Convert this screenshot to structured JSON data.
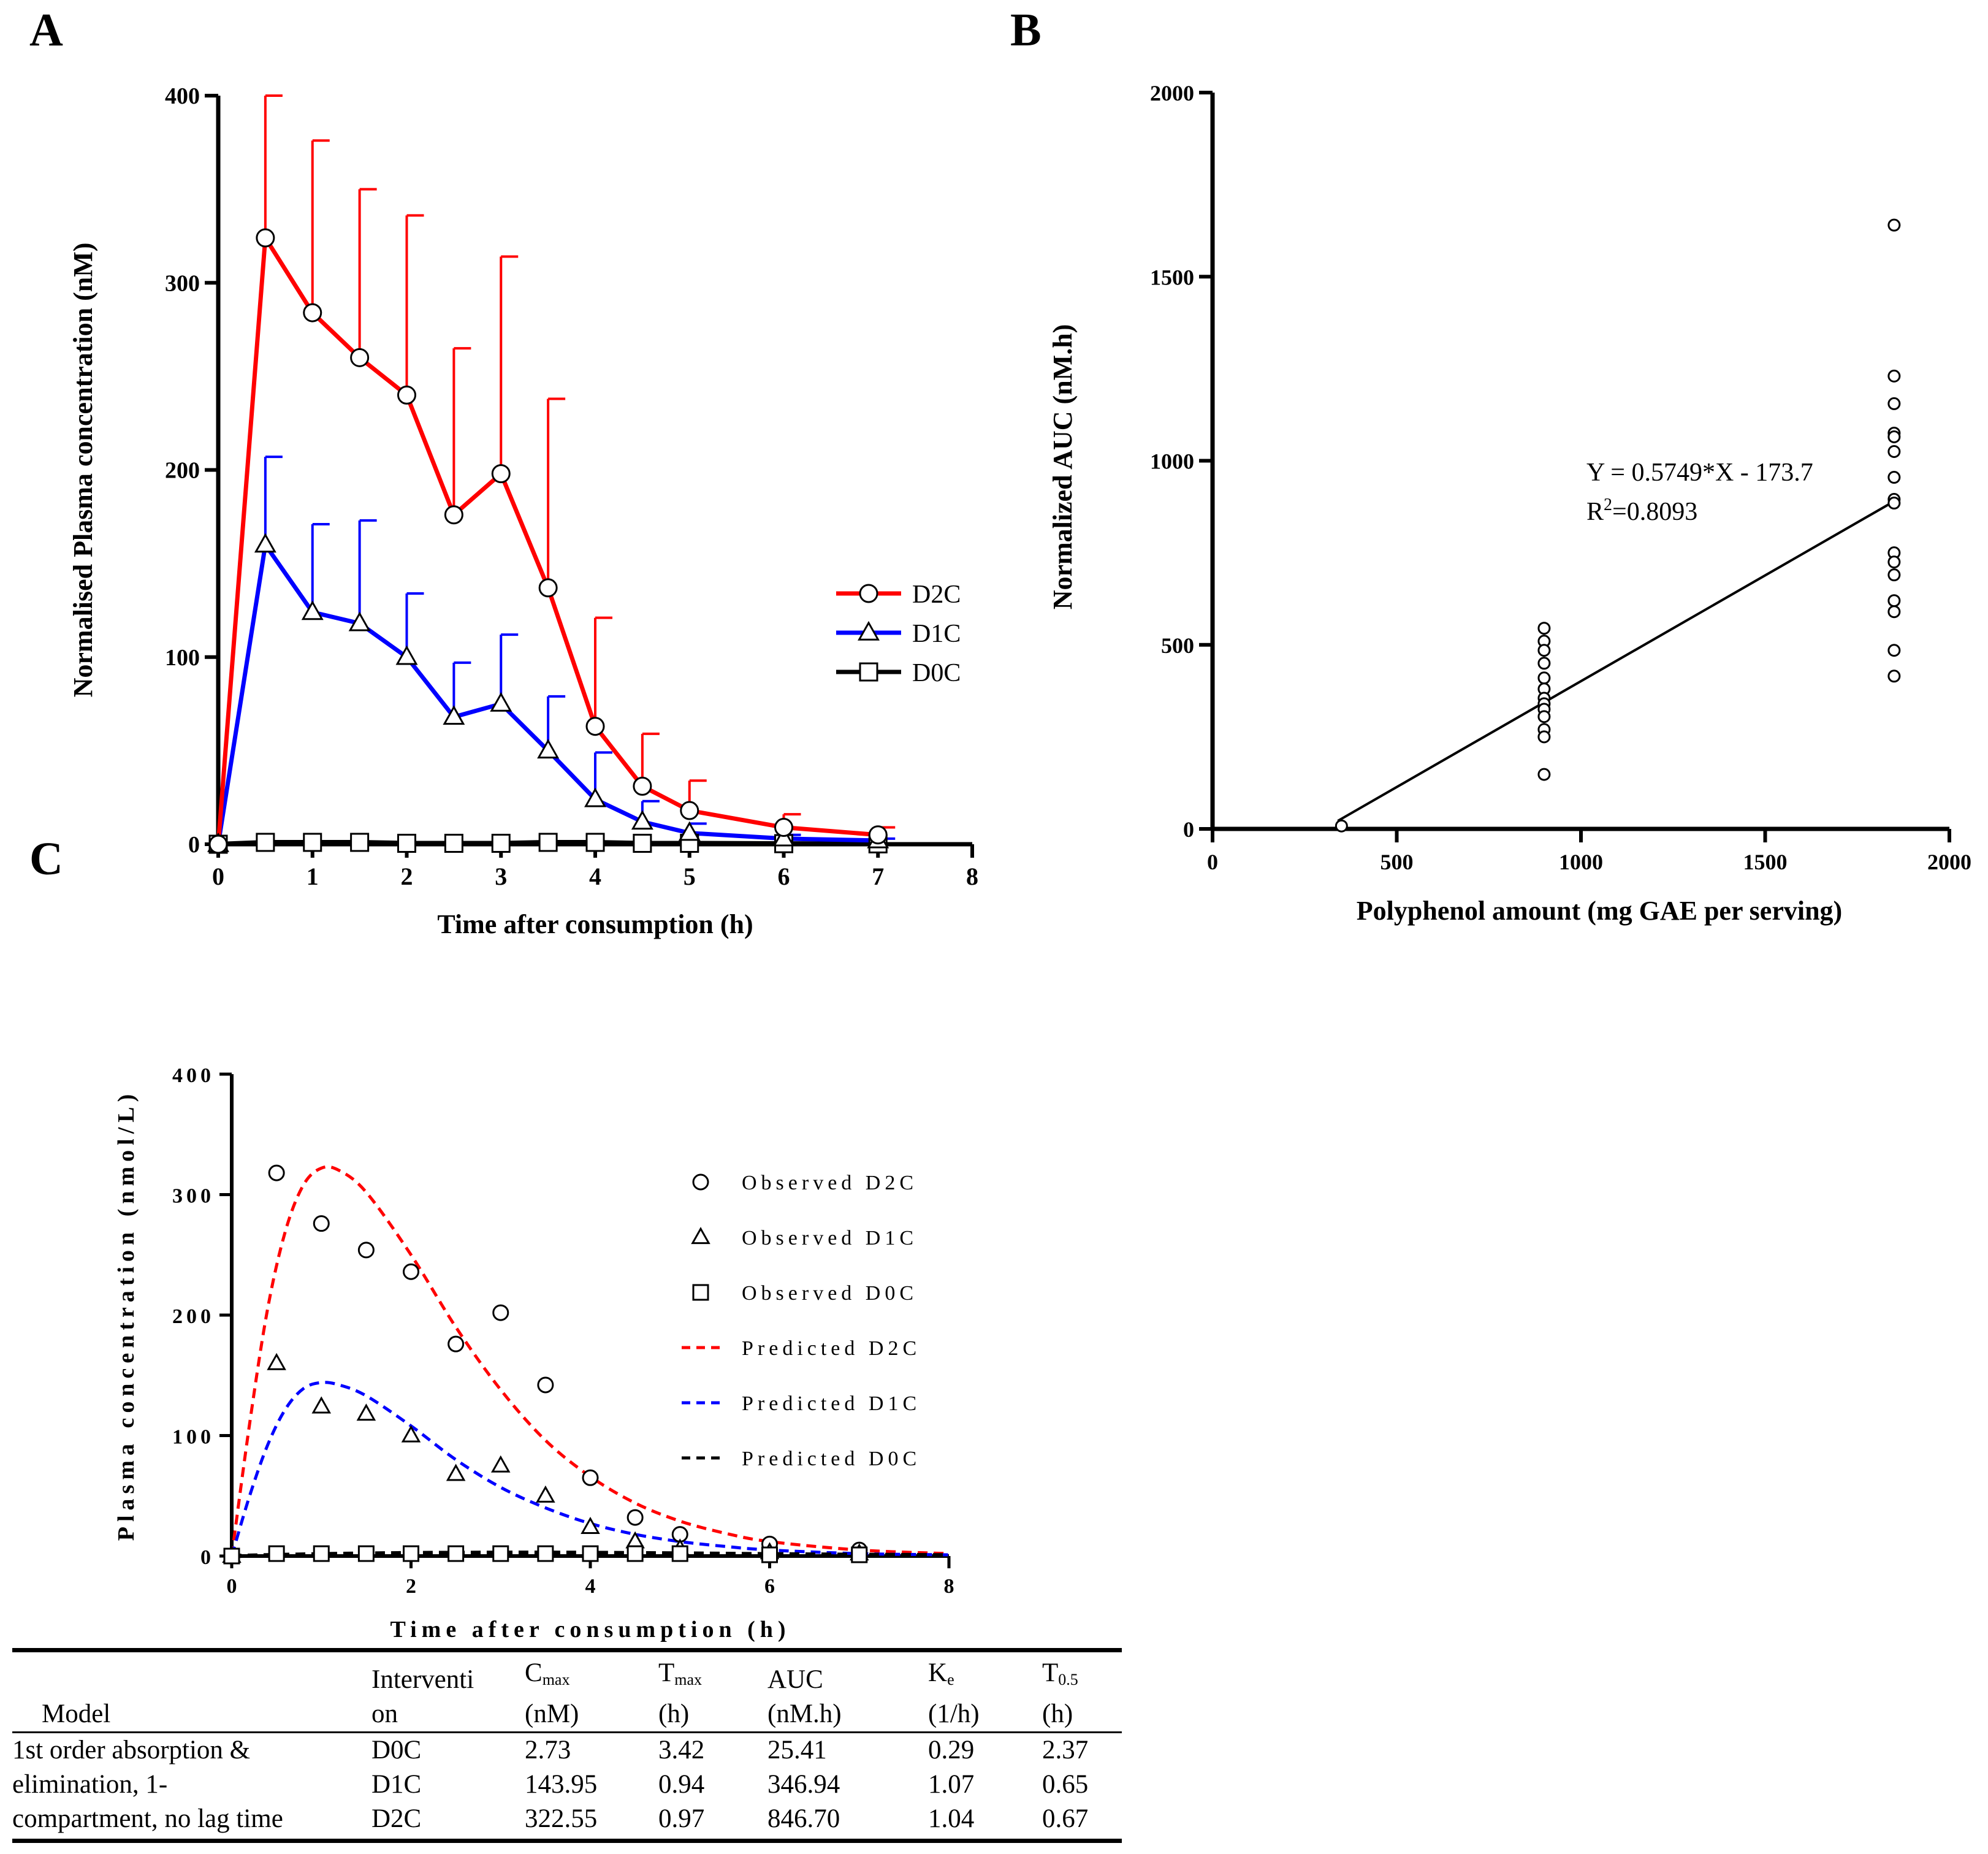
{
  "panels": {
    "a": "A",
    "b": "B",
    "c": "C"
  },
  "chart_data": [
    {
      "id": "A",
      "type": "line",
      "xlabel": "Time after consumption (h)",
      "ylabel": "Normalised Plasma concentration (nM)",
      "xlim": [
        0,
        8
      ],
      "ylim": [
        0,
        400
      ],
      "xticks": [
        "0",
        "1",
        "2",
        "3",
        "4",
        "5",
        "6",
        "7",
        "8"
      ],
      "yticks": [
        "0",
        "100",
        "200",
        "300",
        "400"
      ],
      "legend_position": "right-middle",
      "series": [
        {
          "name": "D2C",
          "color": "#ff0000",
          "marker": "circle",
          "x": [
            0,
            0.5,
            1,
            1.5,
            2,
            2.5,
            3,
            3.5,
            4,
            4.5,
            5,
            6,
            7
          ],
          "y": [
            0,
            324,
            284,
            260,
            240,
            176,
            198,
            137,
            63,
            31,
            18,
            9,
            5
          ],
          "err": [
            0,
            76,
            92,
            90,
            96,
            89,
            116,
            101,
            58,
            28,
            16,
            7,
            4
          ]
        },
        {
          "name": "D1C",
          "color": "#0000ff",
          "marker": "triangle",
          "x": [
            0,
            0.5,
            1,
            1.5,
            2,
            2.5,
            3,
            3.5,
            4,
            4.5,
            5,
            6,
            7
          ],
          "y": [
            0,
            160,
            124,
            118,
            100,
            68,
            75,
            50,
            24,
            12,
            6,
            3,
            2
          ],
          "err": [
            0,
            47,
            47,
            55,
            34,
            29,
            37,
            29,
            25,
            11,
            5,
            2,
            1
          ]
        },
        {
          "name": "D0C",
          "color": "#000000",
          "marker": "square",
          "x": [
            0,
            0.5,
            1,
            1.5,
            2,
            2.5,
            3,
            3.5,
            4,
            4.5,
            5,
            6,
            7
          ],
          "y": [
            0,
            1,
            1,
            1,
            0.5,
            0.5,
            0.5,
            1,
            1,
            0.5,
            0.5,
            0.3,
            0.2
          ],
          "err": [
            0,
            0,
            0,
            0,
            0,
            0,
            0,
            0,
            0,
            0,
            0,
            0,
            0
          ]
        }
      ]
    },
    {
      "id": "B",
      "type": "scatter",
      "xlabel": "Polyphenol amount (mg GAE per serving)",
      "ylabel": "Normalized AUC (nM.h)",
      "xlim": [
        0,
        2000
      ],
      "ylim": [
        0,
        2000
      ],
      "xticks": [
        "0",
        "500",
        "1000",
        "1500",
        "2000"
      ],
      "yticks": [
        "0",
        "500",
        "1000",
        "1500",
        "2000"
      ],
      "points": [
        {
          "x": 350,
          "y": 8
        },
        {
          "x": 900,
          "y": 545
        },
        {
          "x": 900,
          "y": 510
        },
        {
          "x": 900,
          "y": 485
        },
        {
          "x": 900,
          "y": 450
        },
        {
          "x": 900,
          "y": 410
        },
        {
          "x": 900,
          "y": 380
        },
        {
          "x": 900,
          "y": 355
        },
        {
          "x": 900,
          "y": 340
        },
        {
          "x": 900,
          "y": 325
        },
        {
          "x": 900,
          "y": 305
        },
        {
          "x": 900,
          "y": 270
        },
        {
          "x": 900,
          "y": 250
        },
        {
          "x": 900,
          "y": 148
        },
        {
          "x": 1850,
          "y": 1640
        },
        {
          "x": 1850,
          "y": 1230
        },
        {
          "x": 1850,
          "y": 1155
        },
        {
          "x": 1850,
          "y": 1075
        },
        {
          "x": 1850,
          "y": 1065
        },
        {
          "x": 1850,
          "y": 1025
        },
        {
          "x": 1850,
          "y": 955
        },
        {
          "x": 1850,
          "y": 895
        },
        {
          "x": 1850,
          "y": 885
        },
        {
          "x": 1850,
          "y": 750
        },
        {
          "x": 1850,
          "y": 725
        },
        {
          "x": 1850,
          "y": 690
        },
        {
          "x": 1850,
          "y": 620
        },
        {
          "x": 1850,
          "y": 590
        },
        {
          "x": 1850,
          "y": 485
        },
        {
          "x": 1850,
          "y": 415
        }
      ],
      "fit": {
        "slope": 0.5749,
        "intercept": -173.7,
        "x_range": [
          340,
          1850
        ]
      },
      "equation": "Y = 0.5749*X - 173.7",
      "r2_label": "R",
      "r2_sup": "2",
      "r2_value": "=0.8093"
    },
    {
      "id": "C",
      "type": "scatter",
      "xlabel": "Time after consumption (h)",
      "ylabel": "Plasma concentration (nmol/L)",
      "xlim": [
        0,
        8
      ],
      "ylim": [
        0,
        400
      ],
      "xticks": [
        "0",
        "2",
        "4",
        "6",
        "8"
      ],
      "yticks": [
        "0",
        "100",
        "200",
        "300",
        "400"
      ],
      "legend_position": "right",
      "observed": [
        {
          "name": "Observed D2C",
          "marker": "circle",
          "x": [
            0,
            0.5,
            1,
            1.5,
            2,
            2.5,
            3,
            3.5,
            4,
            4.5,
            5,
            6,
            7
          ],
          "y": [
            0,
            318,
            276,
            254,
            236,
            176,
            202,
            142,
            65,
            32,
            18,
            10,
            5
          ]
        },
        {
          "name": "Observed D1C",
          "marker": "triangle",
          "x": [
            0,
            0.5,
            1,
            1.5,
            2,
            2.5,
            3,
            3.5,
            4,
            4.5,
            5,
            6,
            7
          ],
          "y": [
            0,
            160,
            124,
            118,
            100,
            68,
            75,
            50,
            24,
            12,
            6,
            3,
            2
          ]
        },
        {
          "name": "Observed D0C",
          "marker": "square",
          "x": [
            0,
            0.5,
            1,
            1.5,
            2,
            2.5,
            3,
            3.5,
            4,
            4.5,
            5,
            6,
            7
          ],
          "y": [
            0,
            2,
            2,
            2,
            2,
            2,
            2,
            2,
            2,
            2,
            2,
            1,
            1
          ]
        }
      ],
      "predicted": [
        {
          "name": "Predicted D2C",
          "color": "#ff0000",
          "x": [
            0,
            0.2,
            0.4,
            0.6,
            0.8,
            1.0,
            1.2,
            1.5,
            2,
            2.5,
            3,
            3.5,
            4,
            4.5,
            5,
            5.5,
            6,
            7,
            8
          ],
          "y": [
            0,
            110,
            205,
            270,
            308,
            322,
            320,
            302,
            250,
            190,
            138,
            96,
            66,
            44,
            29,
            19,
            12,
            5,
            2
          ]
        },
        {
          "name": "Predicted D1C",
          "color": "#0000ff",
          "x": [
            0,
            0.2,
            0.4,
            0.6,
            0.8,
            1.0,
            1.2,
            1.5,
            2,
            2.5,
            3,
            3.5,
            4,
            4.5,
            5,
            5.5,
            6,
            7,
            8
          ],
          "y": [
            0,
            50,
            92,
            122,
            139,
            144,
            142,
            133,
            108,
            80,
            57,
            40,
            27,
            18,
            12,
            8,
            5,
            2,
            1
          ]
        },
        {
          "name": "Predicted D0C",
          "color": "#000000",
          "x": [
            0,
            1,
            2,
            3,
            3.42,
            4,
            5,
            6,
            7,
            8
          ],
          "y": [
            0,
            1.5,
            2.4,
            2.7,
            2.73,
            2.6,
            2.1,
            1.5,
            1.0,
            0.6
          ]
        }
      ]
    }
  ],
  "table": {
    "headers": {
      "model": "Model",
      "intervention_line1": "Interventi",
      "intervention_line2": "on",
      "cmax": "C",
      "cmax_sub": "max",
      "cmax_unit": "(nM)",
      "tmax": "T",
      "tmax_sub": "max",
      "tmax_unit": "(h)",
      "auc": "AUC",
      "auc_unit": "(nM.h)",
      "ke": "K",
      "ke_sub": "e",
      "ke_unit": "(1/h)",
      "thalf": "T",
      "thalf_sub": "0.5",
      "thalf_unit": "(h)"
    },
    "rows": [
      {
        "model": "1st order absorption &",
        "intervention": "D0C",
        "cmax": "2.73",
        "tmax": "3.42",
        "auc": "25.41",
        "ke": "0.29",
        "thalf": "2.37"
      },
      {
        "model": "elimination, 1-",
        "intervention": "D1C",
        "cmax": "143.95",
        "tmax": "0.94",
        "auc": "346.94",
        "ke": "1.07",
        "thalf": "0.65"
      },
      {
        "model": "compartment, no lag time",
        "intervention": "D2C",
        "cmax": "322.55",
        "tmax": "0.97",
        "auc": "846.70",
        "ke": "1.04",
        "thalf": "0.67"
      }
    ]
  }
}
